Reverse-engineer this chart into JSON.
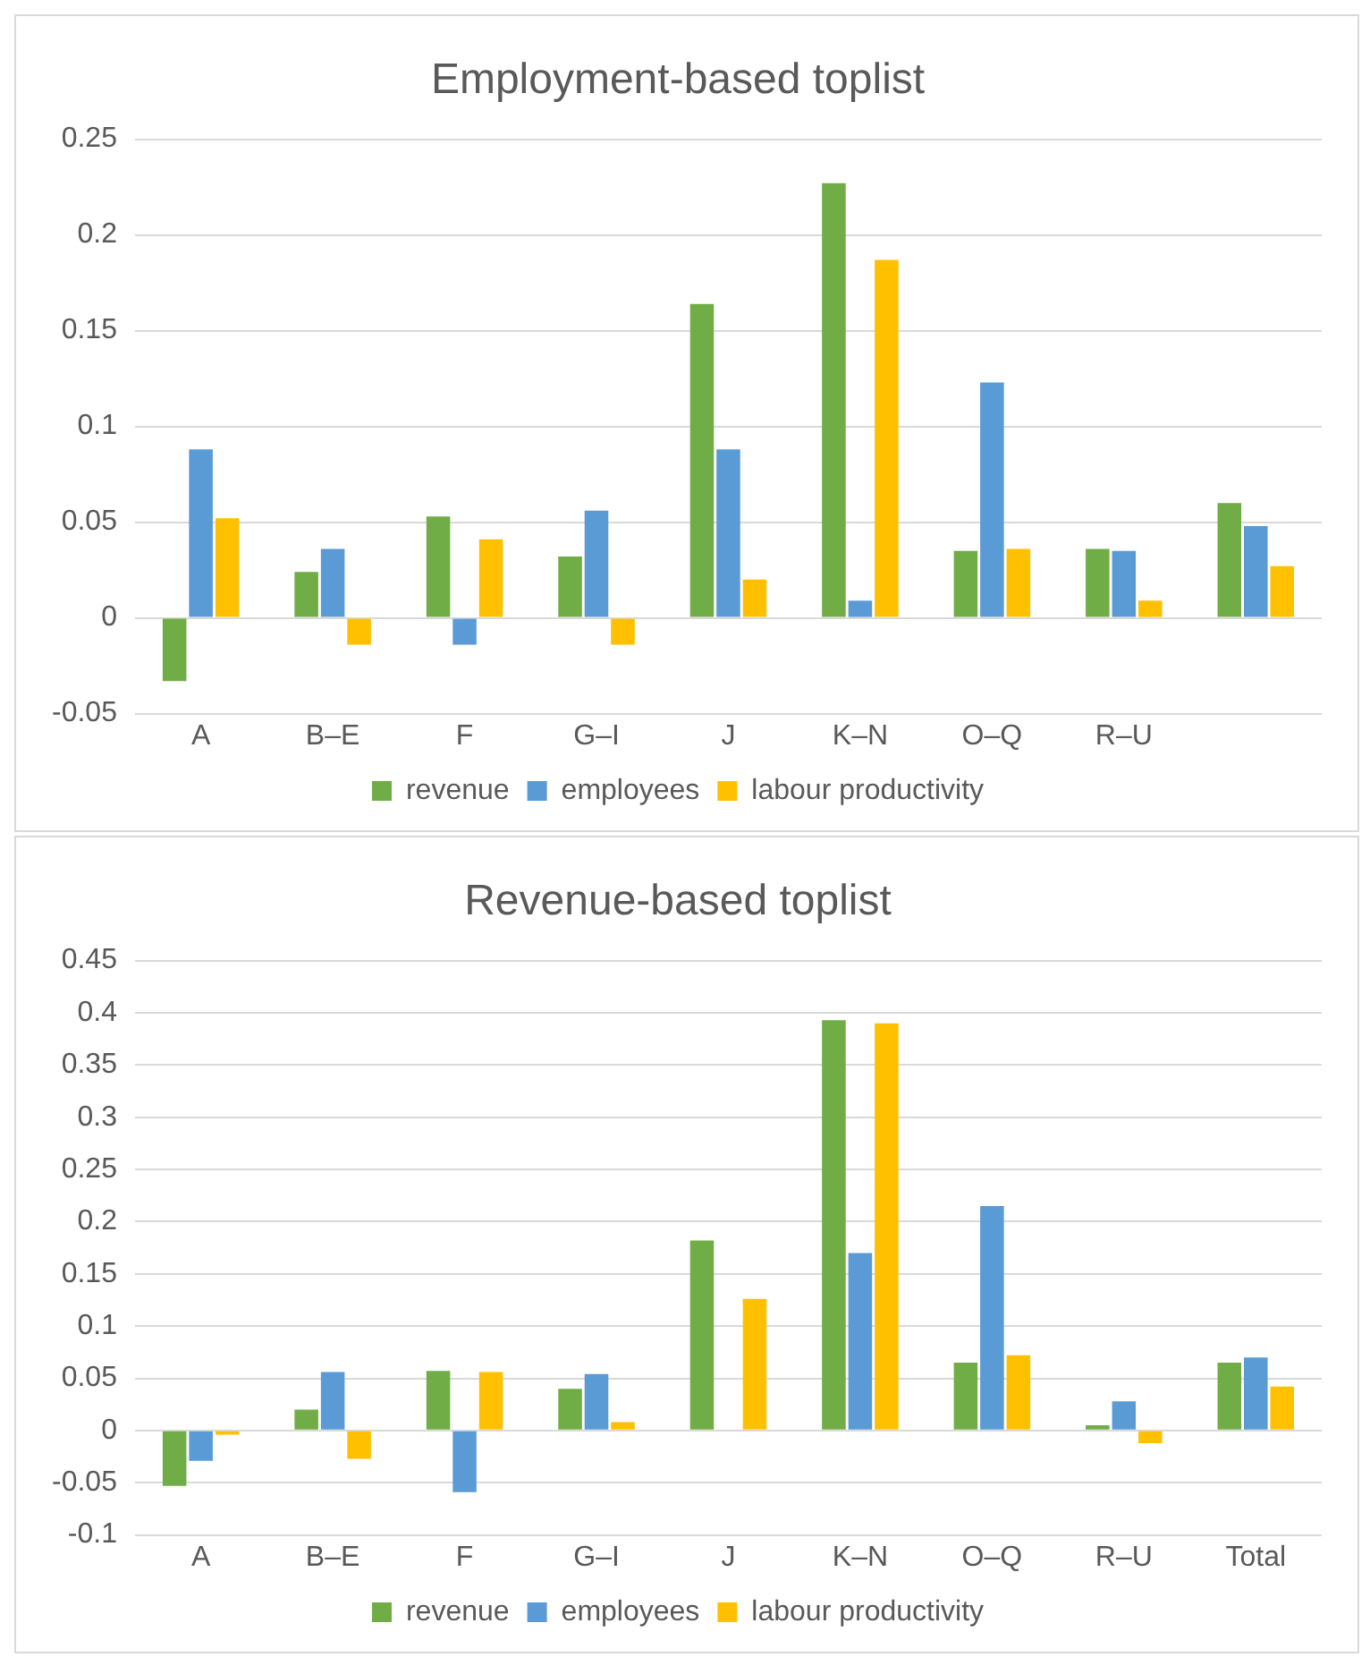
{
  "chart_data": [
    {
      "type": "bar",
      "title": "Employment-based toplist",
      "categories": [
        "A",
        "B–E",
        "F",
        "G–I",
        "J",
        "K–N",
        "O–Q",
        "R–U",
        null
      ],
      "series": [
        {
          "name": "revenue",
          "color": "#70ad47",
          "values": [
            -0.033,
            0.024,
            0.053,
            0.032,
            0.164,
            0.227,
            0.035,
            0.036,
            0.06
          ]
        },
        {
          "name": "employees",
          "color": "#5b9bd5",
          "values": [
            0.088,
            0.036,
            -0.014,
            0.056,
            0.088,
            0.009,
            0.123,
            0.035,
            0.048
          ]
        },
        {
          "name": "labour productivity",
          "color": "#ffc000",
          "values": [
            0.052,
            -0.014,
            0.041,
            -0.014,
            0.02,
            0.187,
            0.036,
            0.009,
            0.027
          ]
        }
      ],
      "ylim": [
        -0.05,
        0.25
      ],
      "yticks": [
        -0.05,
        0,
        0.05,
        0.1,
        0.15,
        0.2,
        0.25
      ],
      "grid": "y",
      "legend": "bottom"
    },
    {
      "type": "bar",
      "title": "Revenue-based toplist",
      "categories": [
        "A",
        "B–E",
        "F",
        "G–I",
        "J",
        "K–N",
        "O–Q",
        "R–U",
        "Total"
      ],
      "series": [
        {
          "name": "revenue",
          "color": "#70ad47",
          "values": [
            -0.053,
            0.02,
            0.057,
            0.04,
            0.182,
            0.393,
            0.065,
            0.005,
            0.065
          ]
        },
        {
          "name": "employees",
          "color": "#5b9bd5",
          "values": [
            -0.029,
            0.056,
            -0.059,
            0.054,
            0,
            0.17,
            0.215,
            0.028,
            0.07
          ]
        },
        {
          "name": "labour productivity",
          "color": "#ffc000",
          "values": [
            -0.004,
            -0.027,
            0.056,
            0.008,
            0.126,
            0.39,
            0.072,
            -0.012,
            0.042
          ]
        }
      ],
      "ylim": [
        -0.1,
        0.45
      ],
      "yticks": [
        -0.1,
        -0.05,
        0,
        0.05,
        0.1,
        0.15,
        0.2,
        0.25,
        0.3,
        0.35,
        0.4,
        0.45
      ],
      "grid": "y",
      "legend": "bottom"
    }
  ]
}
